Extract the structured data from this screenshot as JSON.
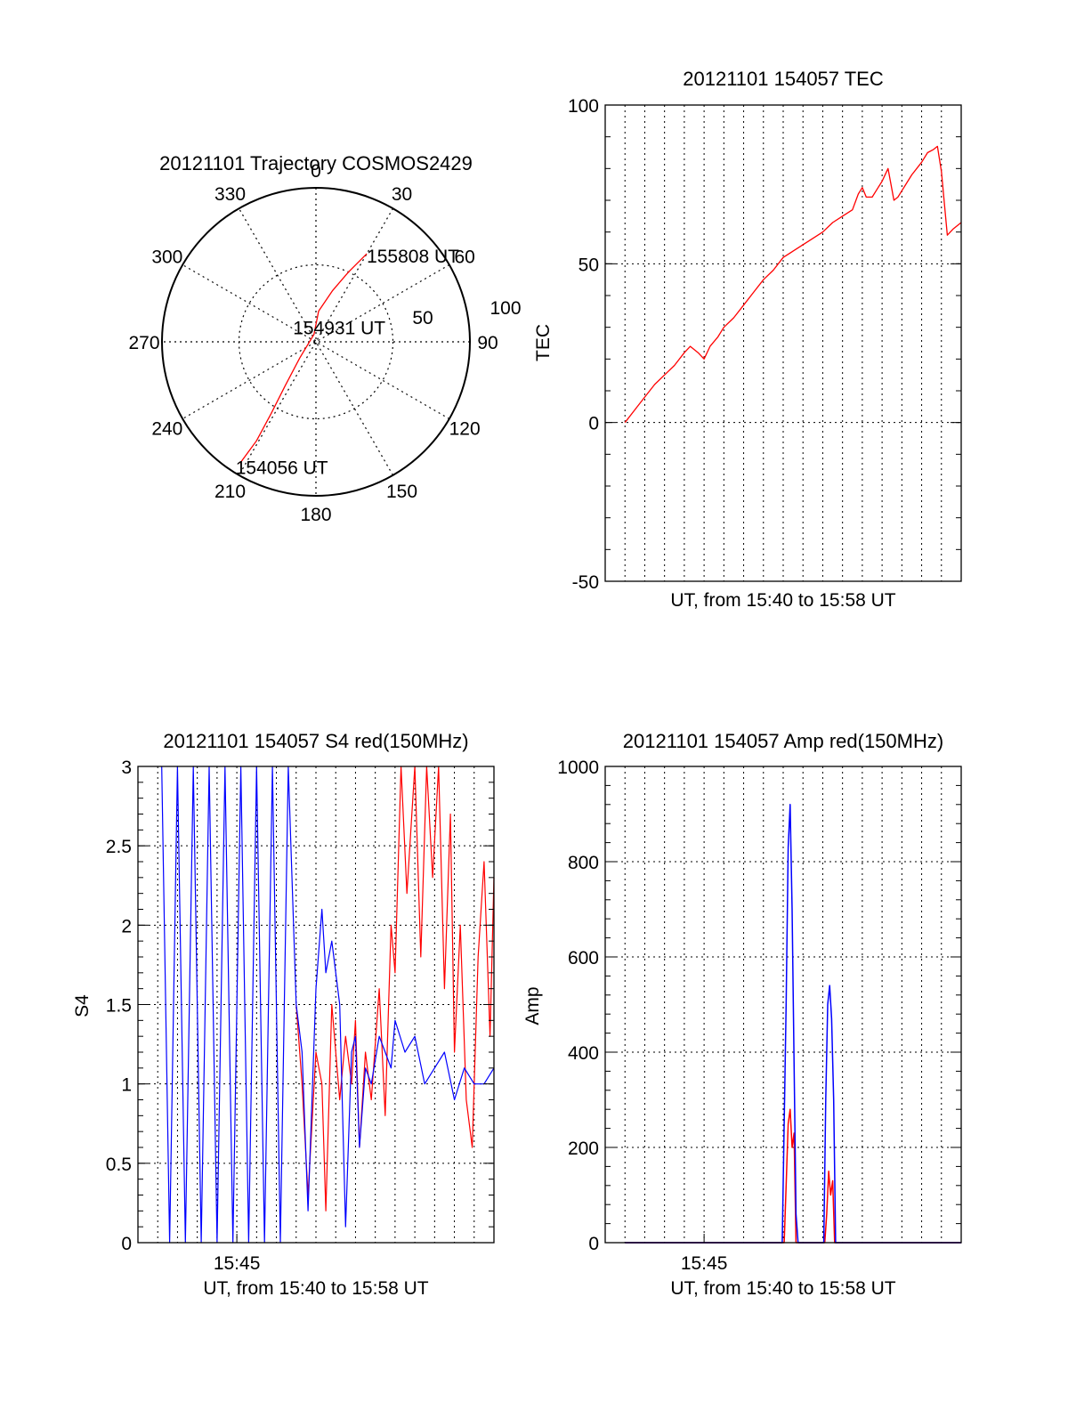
{
  "colors": {
    "red_series": "#ff0000",
    "blue_series": "#0000ff",
    "axes": "#000000"
  },
  "chart_data": [
    {
      "type": "scatter",
      "projection": "polar",
      "title": "20121101 Trajectory COSMOS2429",
      "azimuth_labels": [
        "0",
        "30",
        "60",
        "90",
        "120",
        "150",
        "180",
        "210",
        "240",
        "270",
        "300",
        "330"
      ],
      "radial_labels": [
        "50",
        "100"
      ],
      "rlim": [
        0,
        100
      ],
      "grid": true,
      "annotations": [
        {
          "text": "155808 UT",
          "az": 30,
          "r": 66
        },
        {
          "text": "154931 UT",
          "az": 345,
          "r": 4
        },
        {
          "text": "154056 UT",
          "az": 212,
          "r": 93
        }
      ],
      "series": [
        {
          "color": "#ff0000",
          "points": [
            [
              30,
              66
            ],
            [
              25,
              50
            ],
            [
              18,
              35
            ],
            [
              5,
              20
            ],
            [
              345,
              5
            ],
            [
              225,
              15
            ],
            [
              215,
              35
            ],
            [
              212,
              55
            ],
            [
              211,
              75
            ],
            [
              212,
              93
            ]
          ]
        }
      ]
    },
    {
      "type": "line",
      "title": "20121101 154057 TEC",
      "xlabel": "UT, from 15:40 to 15:58 UT",
      "ylabel": "TEC",
      "xlim": [
        0,
        18
      ],
      "ylim": [
        -50,
        100
      ],
      "yticks": [
        "100",
        "50",
        "0",
        "-50"
      ],
      "grid": true,
      "series": [
        {
          "color": "#ff0000",
          "x": [
            1.0,
            1.5,
            2.0,
            2.5,
            3.0,
            3.5,
            4.0,
            4.3,
            4.7,
            5.0,
            5.3,
            5.7,
            6.0,
            6.5,
            7.0,
            7.5,
            8.0,
            8.5,
            9.0,
            9.5,
            10.0,
            10.5,
            11.0,
            11.5,
            12.0,
            12.5,
            12.8,
            13.0,
            13.2,
            13.5,
            13.7,
            14.0,
            14.3,
            14.6,
            14.8,
            15.0,
            15.5,
            16.0,
            16.3,
            16.6,
            16.8,
            17.0,
            17.3,
            17.6,
            18.0
          ],
          "values": [
            0,
            4,
            8,
            12,
            15,
            18,
            22,
            24,
            22,
            20,
            24,
            27,
            30,
            33,
            37,
            41,
            45,
            48,
            52,
            54,
            56,
            58,
            60,
            63,
            65,
            67,
            72,
            74,
            71,
            71,
            73,
            76,
            80,
            70,
            71,
            73,
            78,
            82,
            85,
            86,
            87,
            79,
            59,
            61,
            63
          ]
        }
      ]
    },
    {
      "type": "line",
      "title": "20121101 154057 S4 red(150MHz)",
      "xlabel": "UT, from 15:40 to 15:58 UT",
      "ylabel": "S4",
      "xlim": [
        0,
        18
      ],
      "ylim": [
        0,
        3
      ],
      "xtick_values": [
        5
      ],
      "xtick_labels": [
        "15:45"
      ],
      "ytick_values": [
        0,
        0.5,
        1,
        1.5,
        2,
        2.5,
        3
      ],
      "yticks": [
        "0",
        "0.5",
        "1",
        "1.5",
        "2",
        "2.5",
        "3"
      ],
      "grid": true,
      "series": [
        {
          "color": "#ff0000",
          "x": [
            8.0,
            8.3,
            8.6,
            9.0,
            9.3,
            9.5,
            9.8,
            10.2,
            10.5,
            10.8,
            11.0,
            11.2,
            11.5,
            11.8,
            12.2,
            12.5,
            12.8,
            13.0,
            13.3,
            13.6,
            14.0,
            14.3,
            14.6,
            14.9,
            15.2,
            15.5,
            15.8,
            16.0,
            16.3,
            16.6,
            16.9,
            17.2,
            17.5,
            17.8,
            18.0
          ],
          "values": [
            1.5,
            1.0,
            0.3,
            1.2,
            1.0,
            0.2,
            1.5,
            0.9,
            1.3,
            1.0,
            1.4,
            0.6,
            1.2,
            0.9,
            1.6,
            0.8,
            2.0,
            1.7,
            3.0,
            2.2,
            3.0,
            1.8,
            3.0,
            2.3,
            3.0,
            1.6,
            2.7,
            1.2,
            2.0,
            0.9,
            0.6,
            1.8,
            2.4,
            1.3,
            2.3
          ]
        },
        {
          "color": "#0000ff",
          "x": [
            1.2,
            1.6,
            2.0,
            2.4,
            2.8,
            3.2,
            3.6,
            4.0,
            4.4,
            4.8,
            5.2,
            5.6,
            6.0,
            6.4,
            6.8,
            7.2,
            7.6,
            8.0,
            8.3,
            8.6,
            9.0,
            9.3,
            9.5,
            9.8,
            10.2,
            10.5,
            10.8,
            11.0,
            11.2,
            11.5,
            11.8,
            12.2,
            12.5,
            12.8,
            13.0,
            13.5,
            14.0,
            14.5,
            15.0,
            15.5,
            16.0,
            16.5,
            17.0,
            17.5,
            18.0
          ],
          "values": [
            3.0,
            0.0,
            3.0,
            0.0,
            3.0,
            0.0,
            3.0,
            0.0,
            3.0,
            0.0,
            3.0,
            0.0,
            3.0,
            0.0,
            3.0,
            0.0,
            3.0,
            1.5,
            1.2,
            0.2,
            1.6,
            2.1,
            1.7,
            1.9,
            1.5,
            0.1,
            1.2,
            1.3,
            0.6,
            1.1,
            1.0,
            1.3,
            1.2,
            1.1,
            1.4,
            1.2,
            1.3,
            1.0,
            1.1,
            1.2,
            0.9,
            1.1,
            1.0,
            1.0,
            1.1
          ]
        }
      ]
    },
    {
      "type": "line",
      "title": "20121101 154057 Amp red(150MHz)",
      "xlabel": "UT, from 15:40 to 15:58 UT",
      "ylabel": "Amp",
      "xlim": [
        0,
        18
      ],
      "ylim": [
        0,
        1000
      ],
      "xtick_values": [
        5
      ],
      "xtick_labels": [
        "15:45"
      ],
      "ytick_values": [
        0,
        200,
        400,
        600,
        800,
        1000
      ],
      "yticks": [
        "0",
        "200",
        "400",
        "600",
        "800",
        "1000"
      ],
      "grid": true,
      "series": [
        {
          "color": "#ff0000",
          "x": [
            1.0,
            9.05,
            9.15,
            9.25,
            9.35,
            9.45,
            9.55,
            9.65,
            11.1,
            11.2,
            11.3,
            11.4,
            11.5,
            11.6,
            18.0
          ],
          "values": [
            0,
            0,
            120,
            250,
            280,
            200,
            230,
            0,
            0,
            60,
            150,
            100,
            130,
            0,
            0
          ]
        },
        {
          "color": "#0000ff",
          "x": [
            1.0,
            8.95,
            9.05,
            9.15,
            9.25,
            9.35,
            9.45,
            9.55,
            9.65,
            9.75,
            11.05,
            11.15,
            11.25,
            11.35,
            11.45,
            11.55,
            11.65,
            18.0
          ],
          "values": [
            0,
            0,
            250,
            500,
            830,
            920,
            700,
            380,
            60,
            0,
            0,
            300,
            500,
            540,
            470,
            300,
            0,
            0
          ]
        }
      ]
    }
  ]
}
